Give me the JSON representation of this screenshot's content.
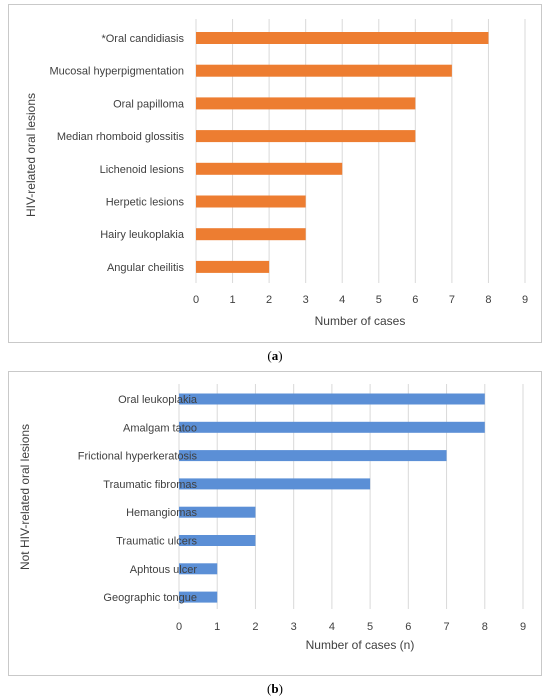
{
  "figure": {
    "caption_a": "a",
    "caption_b": "b"
  },
  "colors": {
    "series_a": "#ed7d31",
    "series_b": "#5b8fd6",
    "grid": "#d9d9d9",
    "text": "#404040"
  },
  "chart_data": [
    {
      "type": "bar",
      "orientation": "horizontal",
      "categories": [
        "*Oral candidiasis",
        "Mucosal hyperpigmentation",
        "Oral papilloma",
        "Median rhomboid glossitis",
        "Lichenoid lesions",
        "Herpetic lesions",
        "Hairy leukoplakia",
        "Angular cheilitis"
      ],
      "values": [
        8,
        7,
        6,
        6,
        4,
        3,
        3,
        2
      ],
      "xlabel": "Number of cases",
      "ylabel": "HIV-related oral lesions",
      "xlim": [
        0,
        9
      ],
      "xticks": [
        "0",
        "1",
        "2",
        "3",
        "4",
        "5",
        "6",
        "7",
        "8",
        "9"
      ],
      "grid": true,
      "color": "#ed7d31"
    },
    {
      "type": "bar",
      "orientation": "horizontal",
      "categories": [
        "Oral leukoplakia",
        "Amalgam tatoo",
        "Frictional hyperkeratosis",
        "Traumatic fibromas",
        "Hemangiomas",
        "Traumatic ulcers",
        "Aphtous ulcer",
        "Geographic tongue"
      ],
      "values": [
        8,
        8,
        7,
        5,
        2,
        2,
        1,
        1
      ],
      "xlabel": "Number of cases (n)",
      "ylabel": "Not HIV-related oral lesions",
      "xlim": [
        0,
        9
      ],
      "xticks": [
        "0",
        "1",
        "2",
        "3",
        "4",
        "5",
        "6",
        "7",
        "8",
        "9"
      ],
      "grid": true,
      "color": "#5b8fd6"
    }
  ]
}
